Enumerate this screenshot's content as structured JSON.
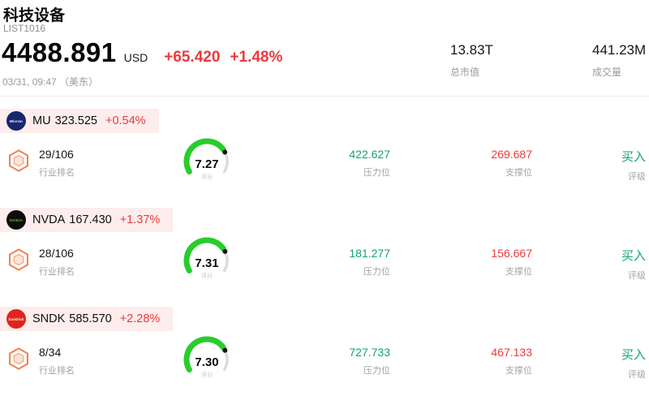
{
  "header": {
    "title": "科技设备",
    "list_id": "LIST1016",
    "price": "4488.891",
    "currency": "USD",
    "change": "+65.420",
    "change_pct": "+1.48%",
    "timestamp": "03/31, 09:47 （美东）",
    "market_cap": {
      "value": "13.83T",
      "label": "总市值"
    },
    "volume": {
      "value": "441.23M",
      "label": "成交量"
    }
  },
  "labels": {
    "rank": "行业排名",
    "score": "评分",
    "resistance": "压力位",
    "support": "支撑位",
    "rating": "评级"
  },
  "stocks": [
    {
      "symbol": "MU",
      "price": "323.525",
      "change": "+0.54%",
      "logo_text": "Micron",
      "logo_bg": "#17266b",
      "logo_fg": "#ffffff",
      "rank": "29/106",
      "score": "7.27",
      "score_pct": 0.727,
      "resistance": "422.627",
      "support": "269.687",
      "rating": "买入"
    },
    {
      "symbol": "NVDA",
      "price": "167.430",
      "change": "+1.37%",
      "logo_text": "NVIDIA",
      "logo_bg": "#0d0d0d",
      "logo_fg": "#76b900",
      "rank": "28/106",
      "score": "7.31",
      "score_pct": 0.731,
      "resistance": "181.277",
      "support": "156.667",
      "rating": "买入"
    },
    {
      "symbol": "SNDK",
      "price": "585.570",
      "change": "+2.28%",
      "logo_text": "SanDisk",
      "logo_bg": "#e2231a",
      "logo_fg": "#ffffff",
      "rank": "8/34",
      "score": "7.30",
      "score_pct": 0.73,
      "resistance": "727.733",
      "support": "467.133",
      "rating": "买入"
    }
  ],
  "colors": {
    "up_red": "#ea3a3d",
    "green_val": "#13a36b",
    "gauge_green": "#27cd2b",
    "band_pink": "#fdeded",
    "hex_orange": "#ef8354"
  }
}
